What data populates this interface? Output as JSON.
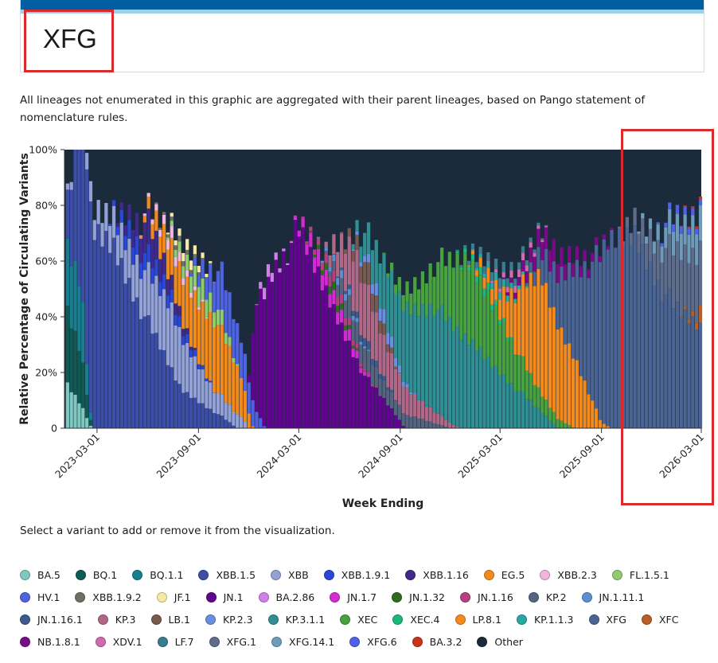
{
  "page": {
    "title": "XFG",
    "note": "All lineages not enumerated in this graphic are aggregated with their parent lineages, based on Pango statement of nomenclature rules.",
    "select_note": "Select a variant to add or remove it from the visualization."
  },
  "colors": {
    "header_bar": "#005ea2",
    "header_accent": "#97d4ea",
    "highlight": "#d92b2b"
  },
  "chart_data": {
    "type": "bar",
    "stacked": true,
    "ylabel": "Relative Percentage of Circulating Variants",
    "xlabel": "Week Ending",
    "ylim": [
      0,
      100
    ],
    "yticks": [
      "0",
      "20%",
      "40%",
      "60%",
      "80%",
      "100%"
    ],
    "x_range": [
      "2023-01-01",
      "2026-03-01"
    ],
    "xticks": [
      "2023-03-01",
      "2023-09-01",
      "2024-03-01",
      "2024-09-01",
      "2025-03-01",
      "2025-09-01",
      "2026-03-01"
    ],
    "series": [
      {
        "name": "BA.5",
        "color": "#7ec8c0",
        "keys": [
          [
            "2023-01-07",
            15
          ],
          [
            "2023-02-01",
            8
          ],
          [
            "2023-02-20",
            0
          ]
        ]
      },
      {
        "name": "BQ.1",
        "color": "#0f5a52",
        "keys": [
          [
            "2023-01-07",
            25
          ],
          [
            "2023-02-01",
            18
          ],
          [
            "2023-02-20",
            0
          ]
        ]
      },
      {
        "name": "BQ.1.1",
        "color": "#177f8f",
        "keys": [
          [
            "2023-01-07",
            22
          ],
          [
            "2023-02-01",
            24
          ],
          [
            "2023-02-20",
            0
          ]
        ]
      },
      {
        "name": "XBB.1.5",
        "color": "#3d4ea8",
        "keys": [
          [
            "2023-01-07",
            16
          ],
          [
            "2023-02-10",
            72
          ],
          [
            "2023-04-01",
            66
          ],
          [
            "2023-06-01",
            38
          ],
          [
            "2023-08-01",
            14
          ],
          [
            "2023-10-15",
            4
          ],
          [
            "2023-11-10",
            0
          ]
        ]
      },
      {
        "name": "XBB",
        "color": "#93a1d6",
        "keys": [
          [
            "2023-01-07",
            2
          ],
          [
            "2023-02-10",
            6
          ],
          [
            "2023-05-01",
            14
          ],
          [
            "2023-07-15",
            22
          ],
          [
            "2023-10-01",
            8
          ],
          [
            "2023-11-20",
            4
          ],
          [
            "2023-12-01",
            0
          ]
        ]
      },
      {
        "name": "XBB.1.9.1",
        "color": "#2b47d8",
        "keys": [
          [
            "2023-03-20",
            0
          ],
          [
            "2023-05-01",
            7
          ],
          [
            "2023-07-01",
            5
          ],
          [
            "2023-09-01",
            2
          ],
          [
            "2023-10-01",
            0
          ]
        ]
      },
      {
        "name": "XBB.1.16",
        "color": "#40298a",
        "keys": [
          [
            "2023-04-01",
            0
          ],
          [
            "2023-06-01",
            12
          ],
          [
            "2023-07-15",
            5
          ],
          [
            "2023-09-01",
            0
          ]
        ]
      },
      {
        "name": "EG.5",
        "color": "#f08a1c",
        "keys": [
          [
            "2023-05-15",
            0
          ],
          [
            "2023-08-01",
            16
          ],
          [
            "2023-10-01",
            26
          ],
          [
            "2023-11-20",
            14
          ],
          [
            "2023-12-10",
            0
          ]
        ]
      },
      {
        "name": "XBB.2.3",
        "color": "#f2b5dc",
        "keys": [
          [
            "2023-05-15",
            0
          ],
          [
            "2023-07-15",
            4
          ],
          [
            "2023-09-01",
            1
          ],
          [
            "2023-10-01",
            0
          ]
        ]
      },
      {
        "name": "FL.1.5.1",
        "color": "#8fcc70",
        "keys": [
          [
            "2023-07-01",
            0
          ],
          [
            "2023-09-01",
            8
          ],
          [
            "2023-10-15",
            5
          ],
          [
            "2023-11-15",
            0
          ]
        ]
      },
      {
        "name": "HV.1",
        "color": "#4f62e0",
        "keys": [
          [
            "2023-08-15",
            0
          ],
          [
            "2023-10-15",
            16
          ],
          [
            "2023-12-01",
            12
          ],
          [
            "2024-01-01",
            0
          ]
        ]
      },
      {
        "name": "XBB.1.9.2",
        "color": "#6f6f64",
        "keys": [
          [
            "2023-06-01",
            0
          ],
          [
            "2023-08-01",
            2
          ],
          [
            "2023-10-01",
            0
          ]
        ]
      },
      {
        "name": "JF.1",
        "color": "#f7e9a3",
        "keys": [
          [
            "2023-07-01",
            0
          ],
          [
            "2023-08-15",
            4
          ],
          [
            "2023-10-01",
            0
          ]
        ]
      },
      {
        "name": "JN.1",
        "color": "#60058d",
        "keys": [
          [
            "2023-12-01",
            0
          ],
          [
            "2023-12-15",
            40
          ],
          [
            "2024-01-15",
            58
          ],
          [
            "2024-03-01",
            70
          ],
          [
            "2024-05-01",
            44
          ],
          [
            "2024-07-01",
            18
          ],
          [
            "2024-08-20",
            6
          ],
          [
            "2024-09-10",
            0
          ]
        ]
      },
      {
        "name": "BA.2.86",
        "color": "#d280e8",
        "keys": [
          [
            "2023-12-15",
            0
          ],
          [
            "2024-01-01",
            5
          ],
          [
            "2024-02-01",
            1
          ],
          [
            "2024-03-01",
            0
          ]
        ]
      },
      {
        "name": "JN.1.7",
        "color": "#d42ad3",
        "keys": [
          [
            "2024-02-15",
            0
          ],
          [
            "2024-04-01",
            6
          ],
          [
            "2024-06-01",
            4
          ],
          [
            "2024-07-15",
            0
          ]
        ]
      },
      {
        "name": "JN.1.32",
        "color": "#2f6b1f",
        "keys": [
          [
            "2024-03-15",
            0
          ],
          [
            "2024-05-01",
            3
          ],
          [
            "2024-07-01",
            0
          ]
        ]
      },
      {
        "name": "JN.1.16",
        "color": "#b5407e",
        "keys": [
          [
            "2024-03-01",
            0
          ],
          [
            "2024-05-01",
            4
          ],
          [
            "2024-07-01",
            1
          ],
          [
            "2024-08-01",
            0
          ]
        ]
      },
      {
        "name": "KP.2",
        "color": "#55657f",
        "keys": [
          [
            "2024-04-15",
            0
          ],
          [
            "2024-06-01",
            8
          ],
          [
            "2024-08-01",
            6
          ],
          [
            "2024-10-01",
            4
          ],
          [
            "2024-12-01",
            0
          ]
        ]
      },
      {
        "name": "JN.1.11.1",
        "color": "#5b8fd0",
        "keys": [
          [
            "2024-04-01",
            0
          ],
          [
            "2024-05-15",
            3
          ],
          [
            "2024-07-15",
            0
          ]
        ]
      },
      {
        "name": "JN.1.16.1",
        "color": "#3c5a8e",
        "keys": [
          [
            "2024-05-01",
            0
          ],
          [
            "2024-07-01",
            3
          ],
          [
            "2024-09-01",
            0
          ]
        ]
      },
      {
        "name": "KP.3",
        "color": "#b06886",
        "keys": [
          [
            "2024-04-15",
            0
          ],
          [
            "2024-06-15",
            22
          ],
          [
            "2024-08-01",
            14
          ],
          [
            "2024-10-15",
            6
          ],
          [
            "2024-12-20",
            0
          ]
        ]
      },
      {
        "name": "LB.1",
        "color": "#7a5a4e",
        "keys": [
          [
            "2024-05-15",
            0
          ],
          [
            "2024-07-01",
            8
          ],
          [
            "2024-09-01",
            0
          ]
        ]
      },
      {
        "name": "KP.2.3",
        "color": "#6a8fe0",
        "keys": [
          [
            "2024-06-01",
            0
          ],
          [
            "2024-08-01",
            5
          ],
          [
            "2024-10-01",
            0
          ]
        ]
      },
      {
        "name": "KP.3.1.1",
        "color": "#2f8f93",
        "keys": [
          [
            "2024-06-01",
            0
          ],
          [
            "2024-08-15",
            22
          ],
          [
            "2024-11-01",
            38
          ],
          [
            "2025-01-15",
            30
          ],
          [
            "2025-04-01",
            14
          ],
          [
            "2025-06-15",
            0
          ]
        ]
      },
      {
        "name": "XEC",
        "color": "#48a240",
        "keys": [
          [
            "2024-08-01",
            0
          ],
          [
            "2024-10-15",
            12
          ],
          [
            "2025-01-01",
            28
          ],
          [
            "2025-03-01",
            20
          ],
          [
            "2025-05-01",
            8
          ],
          [
            "2025-07-15",
            0
          ]
        ]
      },
      {
        "name": "XEC.4",
        "color": "#1ab87a",
        "keys": [
          [
            "2024-12-01",
            0
          ],
          [
            "2025-02-01",
            3
          ],
          [
            "2025-04-01",
            0
          ]
        ]
      },
      {
        "name": "LP.8.1",
        "color": "#f28a1e",
        "keys": [
          [
            "2025-01-01",
            0
          ],
          [
            "2025-03-01",
            8
          ],
          [
            "2025-05-15",
            42
          ],
          [
            "2025-07-15",
            26
          ],
          [
            "2025-09-01",
            2
          ],
          [
            "2025-09-20",
            0
          ]
        ]
      },
      {
        "name": "KP.1.1.3",
        "color": "#2aa7a3",
        "keys": [
          [
            "2025-01-01",
            0
          ],
          [
            "2025-03-01",
            3
          ],
          [
            "2025-05-01",
            0
          ]
        ]
      },
      {
        "name": "XFG",
        "color": "#4a6593",
        "keys": [
          [
            "2025-04-15",
            0
          ],
          [
            "2025-06-15",
            18
          ],
          [
            "2025-08-01",
            42
          ],
          [
            "2025-09-15",
            66
          ],
          [
            "2025-11-01",
            70
          ],
          [
            "2025-12-15",
            52
          ],
          [
            "2026-01-15",
            42
          ],
          [
            "2026-02-28",
            36
          ]
        ]
      },
      {
        "name": "XFC",
        "color": "#b85f27",
        "keys": [
          [
            "2026-01-15",
            0
          ],
          [
            "2026-02-20",
            2
          ],
          [
            "2026-02-28",
            6
          ]
        ]
      },
      {
        "name": "NB.1.8.1",
        "color": "#7a0a8a",
        "keys": [
          [
            "2025-03-01",
            0
          ],
          [
            "2025-06-01",
            8
          ],
          [
            "2025-08-01",
            4
          ],
          [
            "2025-10-01",
            0
          ]
        ]
      },
      {
        "name": "XDV.1",
        "color": "#d26ab0",
        "keys": [
          [
            "2025-02-01",
            0
          ],
          [
            "2025-04-01",
            3
          ],
          [
            "2025-06-01",
            0
          ]
        ]
      },
      {
        "name": "LF.7",
        "color": "#3a7d8f",
        "keys": [
          [
            "2024-12-01",
            0
          ],
          [
            "2025-03-01",
            4
          ],
          [
            "2025-06-01",
            0
          ]
        ]
      },
      {
        "name": "XFG.1",
        "color": "#5e6d8c",
        "keys": [
          [
            "2025-10-01",
            0
          ],
          [
            "2025-12-01",
            12
          ],
          [
            "2026-01-15",
            20
          ],
          [
            "2026-02-28",
            22
          ]
        ]
      },
      {
        "name": "XFG.14.1",
        "color": "#6e9cb8",
        "keys": [
          [
            "2025-11-01",
            0
          ],
          [
            "2026-01-01",
            8
          ],
          [
            "2026-02-28",
            12
          ]
        ]
      },
      {
        "name": "XFG.6",
        "color": "#5060e8",
        "keys": [
          [
            "2025-12-01",
            0
          ],
          [
            "2026-01-15",
            3
          ],
          [
            "2026-02-28",
            2
          ]
        ]
      },
      {
        "name": "BA.3.2",
        "color": "#c9331a",
        "keys": [
          [
            "2026-01-15",
            0
          ],
          [
            "2026-02-28",
            1
          ]
        ]
      },
      {
        "name": "Other",
        "color": "#1b2b3c",
        "keys": []
      }
    ]
  }
}
